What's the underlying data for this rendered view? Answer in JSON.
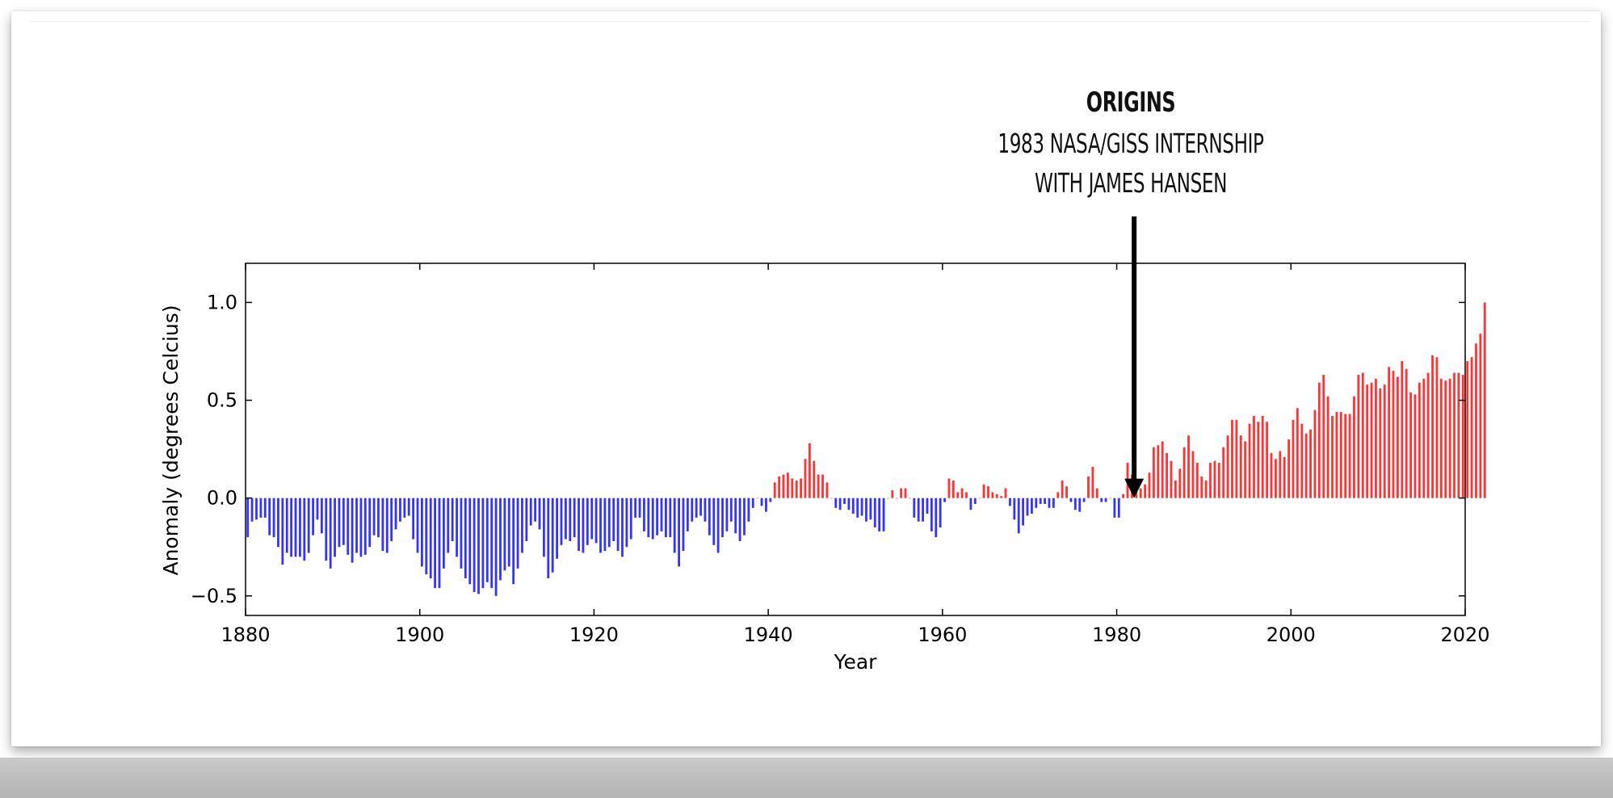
{
  "annotation": {
    "title": "ORIGINS",
    "line1": "1983 NASA/GISS INTERNSHIP",
    "line2": "WITH JAMES HANSEN",
    "arrow_year": 1982
  },
  "chart_data": {
    "type": "bar",
    "xlabel": "Year",
    "ylabel": "Anomaly (degrees Celcius)",
    "xlim": [
      1880,
      2020
    ],
    "ylim": [
      -0.6,
      1.2
    ],
    "xticks": [
      1880,
      1900,
      1920,
      1940,
      1960,
      1980,
      2000,
      2020
    ],
    "yticks": [
      -0.5,
      0.0,
      0.5,
      1.0
    ],
    "ytick_labels": [
      "−0.5",
      "0.0",
      "0.5",
      "1.0"
    ],
    "grid": false,
    "colors": {
      "negative": "#3333ff",
      "positive": "#ff3333"
    },
    "x_start": 1880.25,
    "x_step": 0.5,
    "values": [
      -0.2,
      -0.12,
      -0.11,
      -0.1,
      -0.1,
      -0.19,
      -0.2,
      -0.25,
      -0.34,
      -0.28,
      -0.3,
      -0.3,
      -0.3,
      -0.32,
      -0.28,
      -0.19,
      -0.11,
      -0.18,
      -0.32,
      -0.36,
      -0.3,
      -0.25,
      -0.24,
      -0.29,
      -0.33,
      -0.28,
      -0.3,
      -0.29,
      -0.25,
      -0.19,
      -0.2,
      -0.27,
      -0.28,
      -0.22,
      -0.16,
      -0.12,
      -0.1,
      -0.09,
      -0.21,
      -0.28,
      -0.35,
      -0.39,
      -0.41,
      -0.46,
      -0.46,
      -0.36,
      -0.28,
      -0.22,
      -0.3,
      -0.36,
      -0.41,
      -0.44,
      -0.48,
      -0.49,
      -0.46,
      -0.43,
      -0.46,
      -0.5,
      -0.42,
      -0.37,
      -0.35,
      -0.44,
      -0.36,
      -0.28,
      -0.22,
      -0.14,
      -0.12,
      -0.16,
      -0.3,
      -0.41,
      -0.38,
      -0.31,
      -0.24,
      -0.21,
      -0.22,
      -0.2,
      -0.27,
      -0.28,
      -0.24,
      -0.21,
      -0.23,
      -0.28,
      -0.27,
      -0.25,
      -0.22,
      -0.27,
      -0.3,
      -0.25,
      -0.21,
      -0.1,
      -0.1,
      -0.17,
      -0.2,
      -0.21,
      -0.19,
      -0.17,
      -0.2,
      -0.2,
      -0.28,
      -0.35,
      -0.27,
      -0.17,
      -0.12,
      -0.1,
      -0.09,
      -0.12,
      -0.19,
      -0.24,
      -0.28,
      -0.2,
      -0.17,
      -0.12,
      -0.18,
      -0.22,
      -0.19,
      -0.12,
      -0.05,
      0.0,
      -0.04,
      -0.07,
      -0.02,
      0.08,
      0.11,
      0.12,
      0.13,
      0.1,
      0.09,
      0.1,
      0.2,
      0.28,
      0.19,
      0.12,
      0.12,
      0.08,
      0.0,
      -0.05,
      -0.06,
      -0.03,
      -0.06,
      -0.08,
      -0.1,
      -0.09,
      -0.12,
      -0.11,
      -0.15,
      -0.17,
      -0.17,
      0.0,
      0.04,
      0.0,
      0.05,
      0.05,
      0.0,
      -0.1,
      -0.12,
      -0.12,
      -0.08,
      -0.17,
      -0.2,
      -0.15,
      -0.02,
      0.1,
      0.09,
      0.03,
      0.05,
      0.03,
      -0.06,
      -0.03,
      0.0,
      0.07,
      0.06,
      0.03,
      0.02,
      0.01,
      0.05,
      -0.04,
      -0.11,
      -0.18,
      -0.14,
      -0.09,
      -0.08,
      -0.05,
      -0.03,
      -0.03,
      -0.05,
      -0.05,
      0.03,
      0.09,
      0.06,
      -0.02,
      -0.06,
      -0.07,
      -0.02,
      0.11,
      0.16,
      0.05,
      -0.02,
      -0.02,
      0.0,
      -0.1,
      -0.1,
      0.02,
      0.18,
      0.12,
      0.05,
      0.05,
      0.07,
      0.13,
      0.26,
      0.27,
      0.29,
      0.23,
      0.19,
      0.09,
      0.15,
      0.26,
      0.32,
      0.24,
      0.18,
      0.11,
      0.09,
      0.18,
      0.19,
      0.18,
      0.26,
      0.32,
      0.4,
      0.4,
      0.32,
      0.29,
      0.38,
      0.42,
      0.39,
      0.42,
      0.39,
      0.23,
      0.2,
      0.24,
      0.21,
      0.3,
      0.4,
      0.46,
      0.38,
      0.33,
      0.35,
      0.45,
      0.59,
      0.63,
      0.52,
      0.42,
      0.44,
      0.44,
      0.43,
      0.43,
      0.52,
      0.63,
      0.64,
      0.58,
      0.59,
      0.61,
      0.56,
      0.58,
      0.67,
      0.65,
      0.62,
      0.7,
      0.66,
      0.54,
      0.53,
      0.59,
      0.61,
      0.64,
      0.73,
      0.72,
      0.61,
      0.6,
      0.61,
      0.64,
      0.64,
      0.63,
      0.7,
      0.72,
      0.79,
      0.84,
      1.0
    ]
  }
}
